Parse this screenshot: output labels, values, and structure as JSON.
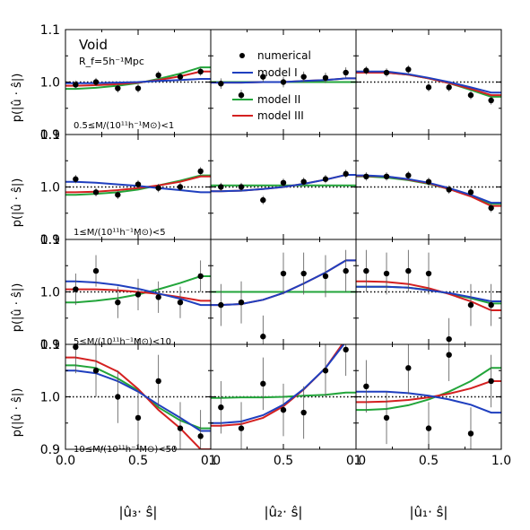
{
  "figure": {
    "ylabel": "p(|û · ŝ|)",
    "column_xlabels": [
      "|û₃· ŝ|",
      "|û₂· ŝ|",
      "|û₁· ŝ|"
    ],
    "void_label": "Void",
    "rf_label": "R_f=5h⁻¹Mpc",
    "x_ticks": [
      "0.0",
      "0.5",
      "1.0"
    ],
    "x_ticks_last_col": [
      "0.0",
      "0.5",
      "1.0"
    ],
    "y_ticks": [
      "0.9",
      "1.0",
      "1.1"
    ],
    "legend": [
      {
        "label": "numerical",
        "marker": "dot",
        "color": "#000000"
      },
      {
        "label": "model I",
        "color": "#1f3fbf"
      },
      {
        "label": "model II",
        "color": "#22a53a"
      },
      {
        "label": "model III",
        "color": "#d42020"
      }
    ],
    "row_labels": [
      "0.5≤M/(10¹¹h⁻¹M⊙)<1",
      "1≤M/(10¹¹h⁻¹M⊙)<5",
      "5≤M/(10¹¹h⁻¹M⊙)<10",
      "10≤M/(10¹¹h⁻¹M⊙)<50"
    ]
  },
  "chart_data": {
    "type": "scatter",
    "layout": "4 rows x 3 columns grid",
    "xlim": [
      0,
      1
    ],
    "ylim": [
      0.9,
      1.1
    ],
    "reference_line": 1.0,
    "x_points": [
      0.07,
      0.21,
      0.36,
      0.5,
      0.64,
      0.79,
      0.93
    ],
    "panels": [
      {
        "row": 0,
        "col": 0,
        "numerical": [
          0.995,
          1.0,
          0.988,
          0.988,
          1.013,
          1.01,
          1.02
        ],
        "err": [
          0.008,
          0.008,
          0.008,
          0.008,
          0.008,
          0.008,
          0.008
        ],
        "model_I": [
          0.998,
          0.998,
          0.999,
          1.0,
          1.002,
          1.004,
          1.006
        ],
        "model_II": [
          0.987,
          0.989,
          0.993,
          0.998,
          1.006,
          1.016,
          1.028
        ],
        "model_III": [
          0.993,
          0.994,
          0.996,
          0.999,
          1.004,
          1.011,
          1.02
        ]
      },
      {
        "row": 0,
        "col": 1,
        "numerical": [
          0.997,
          0.975,
          1.01,
          1.0,
          1.01,
          1.008,
          1.018
        ],
        "err": [
          0.01,
          0.01,
          0.01,
          0.01,
          0.01,
          0.01,
          0.01
        ],
        "model_I": [
          0.999,
          0.999,
          1.0,
          1.0,
          1.002,
          1.004,
          1.007
        ],
        "model_II": [
          1.0,
          1.0,
          1.0,
          1.0,
          1.0,
          1.0,
          1.0
        ],
        "model_III": [
          0.999,
          0.999,
          1.0,
          1.0,
          1.002,
          1.004,
          1.007
        ]
      },
      {
        "row": 0,
        "col": 2,
        "numerical": [
          1.022,
          1.018,
          1.024,
          0.99,
          0.99,
          0.975,
          0.965
        ],
        "err": [
          0.008,
          0.008,
          0.008,
          0.008,
          0.008,
          0.008,
          0.008
        ],
        "model_I": [
          1.02,
          1.02,
          1.015,
          1.008,
          1.0,
          0.99,
          0.98
        ],
        "model_II": [
          1.018,
          1.018,
          1.014,
          1.007,
          0.998,
          0.985,
          0.972
        ],
        "model_III": [
          1.018,
          1.018,
          1.014,
          1.007,
          0.998,
          0.987,
          0.975
        ]
      },
      {
        "row": 1,
        "col": 0,
        "numerical": [
          1.015,
          0.99,
          0.985,
          1.005,
          0.998,
          1.0,
          1.03
        ],
        "err": [
          0.008,
          0.008,
          0.008,
          0.008,
          0.008,
          0.008,
          0.008
        ],
        "model_I": [
          1.01,
          1.008,
          1.005,
          1.002,
          0.998,
          0.994,
          0.99
        ],
        "model_II": [
          0.985,
          0.987,
          0.99,
          0.995,
          1.003,
          1.012,
          1.022
        ],
        "model_III": [
          0.99,
          0.991,
          0.994,
          0.998,
          1.003,
          1.01,
          1.02
        ]
      },
      {
        "row": 1,
        "col": 1,
        "numerical": [
          1.0,
          1.0,
          0.975,
          1.008,
          1.01,
          1.015,
          1.025
        ],
        "err": [
          0.008,
          0.008,
          0.008,
          0.008,
          0.008,
          0.008,
          0.008
        ],
        "model_I": [
          0.992,
          0.993,
          0.996,
          1.0,
          1.006,
          1.014,
          1.023
        ],
        "model_II": [
          1.003,
          1.003,
          1.003,
          1.003,
          1.003,
          1.003,
          1.003
        ],
        "model_III": [
          0.992,
          0.993,
          0.996,
          1.0,
          1.006,
          1.014,
          1.023
        ]
      },
      {
        "row": 1,
        "col": 2,
        "numerical": [
          1.02,
          1.02,
          1.022,
          1.01,
          0.995,
          0.99,
          0.96
        ],
        "err": [
          0.008,
          0.008,
          0.008,
          0.008,
          0.008,
          0.008,
          0.008
        ],
        "model_I": [
          1.022,
          1.02,
          1.015,
          1.008,
          0.998,
          0.985,
          0.97
        ],
        "model_II": [
          1.02,
          1.018,
          1.013,
          1.006,
          0.996,
          0.983,
          0.968
        ],
        "model_III": [
          1.021,
          1.02,
          1.014,
          1.007,
          0.996,
          0.982,
          0.964
        ]
      },
      {
        "row": 2,
        "col": 0,
        "numerical": [
          1.005,
          1.04,
          0.98,
          0.995,
          0.99,
          0.98,
          1.03
        ],
        "err": [
          0.03,
          0.03,
          0.03,
          0.03,
          0.03,
          0.03,
          0.03
        ],
        "model_I": [
          1.02,
          1.018,
          1.013,
          1.006,
          0.997,
          0.987,
          0.975
        ],
        "model_II": [
          0.98,
          0.983,
          0.988,
          0.995,
          1.005,
          1.017,
          1.03
        ],
        "model_III": [
          1.005,
          1.005,
          1.003,
          1.0,
          0.996,
          0.99,
          0.983
        ]
      },
      {
        "row": 2,
        "col": 1,
        "numerical": [
          0.975,
          0.98,
          0.915,
          1.035,
          1.035,
          1.03,
          1.04
        ],
        "err": [
          0.04,
          0.04,
          0.04,
          0.04,
          0.04,
          0.04,
          0.04
        ],
        "model_I": [
          0.975,
          0.977,
          0.985,
          0.998,
          1.016,
          1.037,
          1.06
        ],
        "model_II": [
          1.0,
          1.0,
          1.0,
          1.0,
          1.0,
          1.0,
          1.0
        ],
        "model_III": [
          0.975,
          0.977,
          0.985,
          0.998,
          1.016,
          1.037,
          1.06
        ]
      },
      {
        "row": 2,
        "col": 2,
        "numerical": [
          1.04,
          1.035,
          1.04,
          1.035,
          0.91,
          0.975,
          0.975
        ],
        "err": [
          0.04,
          0.04,
          0.04,
          0.04,
          0.04,
          0.04,
          0.04
        ],
        "model_I": [
          1.01,
          1.01,
          1.008,
          1.003,
          0.998,
          0.99,
          0.982
        ],
        "model_II": [
          1.01,
          1.01,
          1.008,
          1.004,
          0.997,
          0.988,
          0.978
        ],
        "model_III": [
          1.02,
          1.019,
          1.015,
          1.007,
          0.996,
          0.982,
          0.965
        ]
      },
      {
        "row": 3,
        "col": 0,
        "numerical": [
          1.095,
          1.05,
          1.0,
          0.96,
          1.03,
          0.94,
          0.925
        ],
        "err": [
          0.05,
          0.05,
          0.05,
          0.05,
          0.05,
          0.05,
          0.05
        ],
        "model_I": [
          1.05,
          1.045,
          1.03,
          1.01,
          0.985,
          0.96,
          0.935
        ],
        "model_II": [
          1.06,
          1.055,
          1.035,
          1.012,
          0.98,
          0.955,
          0.94
        ],
        "model_III": [
          1.075,
          1.068,
          1.048,
          1.015,
          0.975,
          0.94,
          0.9
        ]
      },
      {
        "row": 3,
        "col": 1,
        "numerical": [
          0.98,
          0.94,
          1.025,
          0.975,
          0.97,
          1.05,
          1.09
        ],
        "err": [
          0.05,
          0.05,
          0.05,
          0.05,
          0.05,
          0.05,
          0.05
        ],
        "model_I": [
          0.95,
          0.953,
          0.965,
          0.985,
          1.015,
          1.055,
          1.105
        ],
        "model_II": [
          0.998,
          0.999,
          0.999,
          1.0,
          1.002,
          1.004,
          1.008
        ],
        "model_III": [
          0.945,
          0.948,
          0.96,
          0.982,
          1.014,
          1.055,
          1.11
        ]
      },
      {
        "row": 3,
        "col": 2,
        "numerical": [
          1.02,
          0.96,
          1.055,
          0.94,
          1.08,
          0.93,
          1.03
        ],
        "err": [
          0.05,
          0.05,
          0.05,
          0.05,
          0.05,
          0.05,
          0.05
        ],
        "model_I": [
          1.01,
          1.01,
          1.007,
          1.002,
          0.995,
          0.985,
          0.97
        ],
        "model_II": [
          0.975,
          0.977,
          0.984,
          0.995,
          1.01,
          1.03,
          1.055
        ],
        "model_III": [
          0.99,
          0.991,
          0.994,
          0.999,
          1.006,
          1.016,
          1.03
        ]
      }
    ]
  }
}
